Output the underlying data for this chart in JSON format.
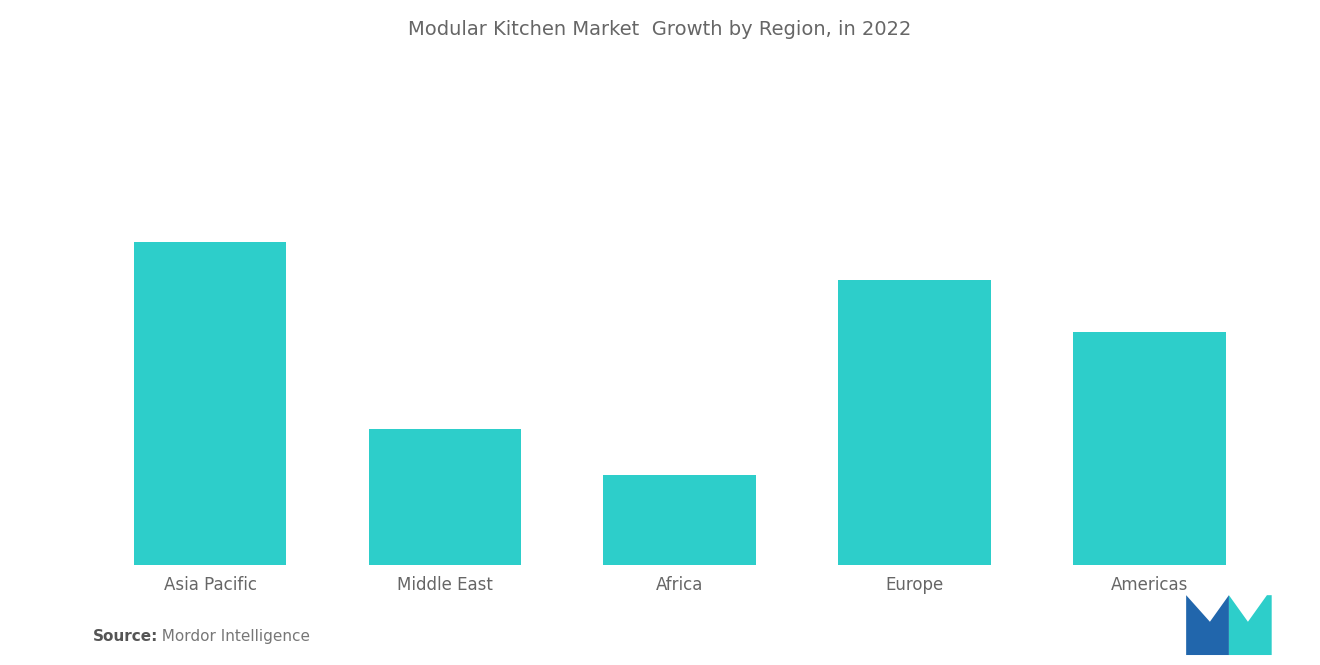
{
  "title": "Modular Kitchen Market  Growth by Region, in 2022",
  "categories": [
    "Asia Pacific",
    "Middle East",
    "Africa",
    "Europe",
    "Americas"
  ],
  "values": [
    100,
    42,
    28,
    88,
    72
  ],
  "bar_color": "#2DCECA",
  "background_color": "#ffffff",
  "title_fontsize": 14,
  "title_color": "#666666",
  "xlabel_fontsize": 12,
  "xlabel_color": "#666666",
  "source_bold": "Source:",
  "source_normal": "  Mordor Intelligence",
  "source_fontsize": 11,
  "ylim_max": 150,
  "bar_width": 0.65
}
